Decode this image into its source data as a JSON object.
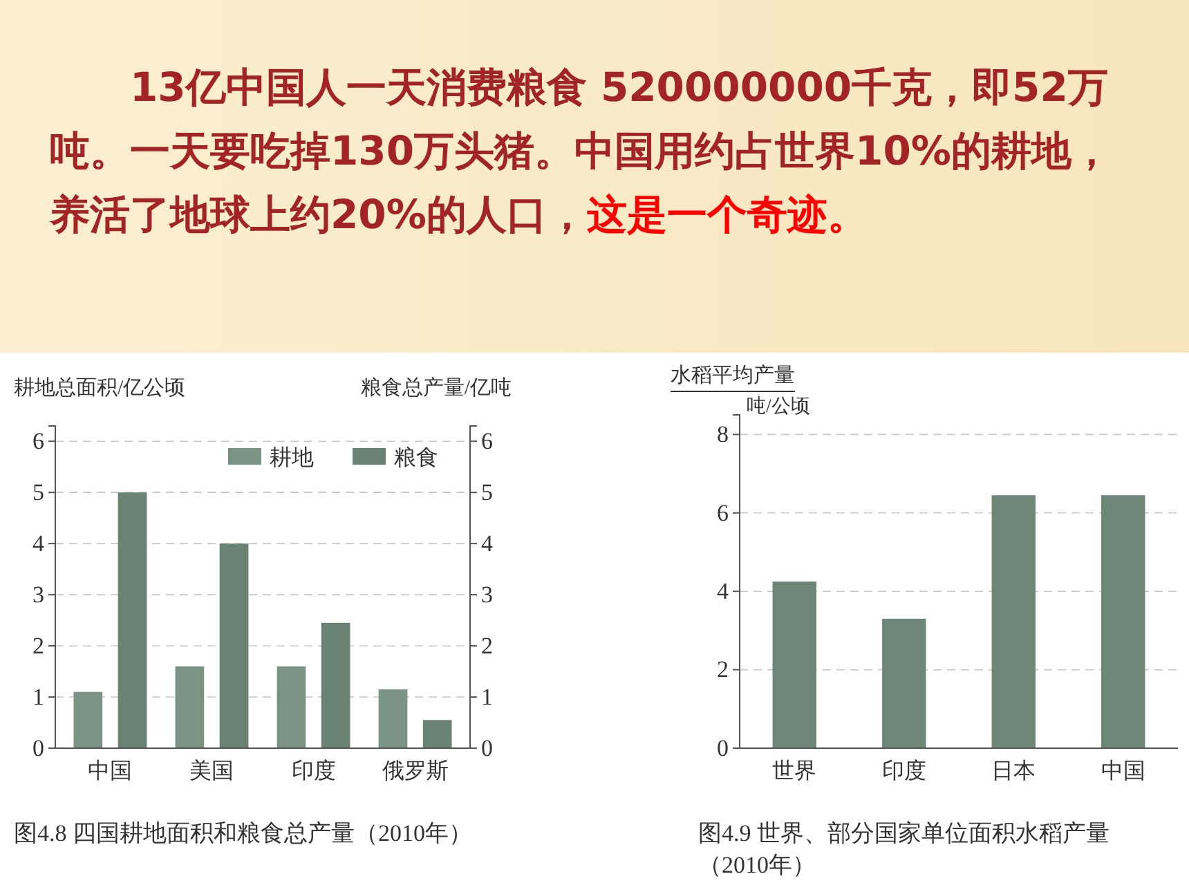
{
  "chart_data": [
    {
      "type": "other",
      "annotations": [
        "13亿中国人一天消费粮食 520000000千克，即52万吨。一天要吃掉130万头猪。中国用约占世界10%的耕地，养活了地球上约20%的人口，",
        "这是一个奇迹。"
      ]
    },
    {
      "type": "bar",
      "title": "图4.8  四国耕地面积和粮食总产量（2010年）",
      "ylabel": "耕地总面积/亿公顷",
      "y2label": "粮食总产量/亿吨",
      "categories": [
        "中国",
        "美国",
        "印度",
        "俄罗斯"
      ],
      "series": [
        {
          "name": "耕地",
          "color": "#7b9384",
          "values": [
            1.1,
            1.6,
            1.6,
            1.15
          ]
        },
        {
          "name": "粮食",
          "color": "#6a8274",
          "values": [
            5.0,
            4.0,
            2.45,
            0.55
          ]
        }
      ],
      "ylim": [
        0,
        6.3
      ],
      "yticks": [
        0,
        1,
        2,
        3,
        4,
        5,
        6
      ],
      "y2lim": [
        0,
        6.3
      ],
      "y2ticks": [
        0,
        1,
        2,
        3,
        4,
        5,
        6
      ],
      "grid": "y",
      "legend": "top right"
    },
    {
      "type": "bar",
      "title": "图4.9  世界、部分国家单位面积水稻产量（2010年）",
      "ylabel": "水稻平均产量",
      "annotations": [
        "吨/公顷"
      ],
      "categories": [
        "世界",
        "印度",
        "日本",
        "中国"
      ],
      "values": [
        4.25,
        3.3,
        6.45,
        6.45
      ],
      "color": "#6e8677",
      "ylim": [
        0,
        8.5
      ],
      "yticks": [
        0,
        2,
        4,
        6,
        8
      ],
      "grid": "y"
    }
  ]
}
